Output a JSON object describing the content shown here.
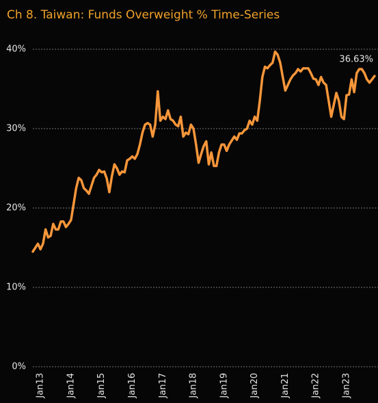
{
  "chart_data": {
    "type": "line",
    "title": "Ch 8. Taiwan:  Funds Overweight % Time-Series",
    "categories": [
      null,
      null,
      null,
      "Jan13",
      null,
      null,
      null,
      null,
      null,
      null,
      null,
      null,
      null,
      null,
      null,
      "Jan14",
      null,
      null,
      null,
      null,
      null,
      null,
      null,
      null,
      null,
      null,
      null,
      "Jan15",
      null,
      null,
      null,
      null,
      null,
      null,
      null,
      null,
      null,
      null,
      null,
      "Jan16",
      null,
      null,
      null,
      null,
      null,
      null,
      null,
      null,
      null,
      null,
      null,
      "Jan17",
      null,
      null,
      null,
      null,
      null,
      null,
      null,
      null,
      null,
      null,
      null,
      "Jan18",
      null,
      null,
      null,
      null,
      null,
      null,
      null,
      null,
      null,
      null,
      null,
      "Jan19",
      null,
      null,
      null,
      null,
      null,
      null,
      null,
      null,
      null,
      null,
      null,
      "Jan20",
      null,
      null,
      null,
      null,
      null,
      null,
      null,
      null,
      null,
      null,
      null,
      "Jan21",
      null,
      null,
      null,
      null,
      null,
      null,
      null,
      null,
      null,
      null,
      null,
      "Jan22",
      null,
      null,
      null,
      null,
      null,
      null,
      null,
      null,
      null,
      null,
      null,
      "Jan23",
      null,
      null,
      null,
      null,
      null,
      null,
      null,
      null,
      null,
      null,
      null
    ],
    "series": [
      {
        "name": "Funds Overweight %",
        "color": "#f7963a",
        "values": [
          14.5,
          15.0,
          15.5,
          14.8,
          15.5,
          17.3,
          16.3,
          16.5,
          18.0,
          17.3,
          17.3,
          18.3,
          18.3,
          17.6,
          18.0,
          18.5,
          20.5,
          22.5,
          23.8,
          23.5,
          22.5,
          22.2,
          21.8,
          22.8,
          23.8,
          24.2,
          24.8,
          24.5,
          24.6,
          23.7,
          22.0,
          24.0,
          25.5,
          25.0,
          24.2,
          24.6,
          24.5,
          26.0,
          26.2,
          26.5,
          26.2,
          26.8,
          28.0,
          29.5,
          30.5,
          30.7,
          30.5,
          29.0,
          30.5,
          34.7,
          31.0,
          31.5,
          31.2,
          32.3,
          31.2,
          31.0,
          30.5,
          30.3,
          31.5,
          29.0,
          29.5,
          29.3,
          30.5,
          30.0,
          28.0,
          25.7,
          26.8,
          27.8,
          28.4,
          25.5,
          27.0,
          25.3,
          25.3,
          27.0,
          28.0,
          28.0,
          27.2,
          28.0,
          28.5,
          29.0,
          28.6,
          29.4,
          29.4,
          29.8,
          30.0,
          31.0,
          30.5,
          31.5,
          31.0,
          33.5,
          36.5,
          37.8,
          37.6,
          38.0,
          38.3,
          39.7,
          39.3,
          38.3,
          36.5,
          34.8,
          35.5,
          36.2,
          36.7,
          37.0,
          37.5,
          37.2,
          37.6,
          37.6,
          37.6,
          37.0,
          36.3,
          36.2,
          35.5,
          36.5,
          35.8,
          35.5,
          33.5,
          31.5,
          33.0,
          34.5,
          33.5,
          31.5,
          31.2,
          34.2,
          34.3,
          36.2,
          34.6,
          37.0,
          37.5,
          37.5,
          37.0,
          36.2,
          35.8,
          36.2,
          36.63
        ],
        "value_labels": [
          null,
          null,
          null,
          null,
          null,
          null,
          null,
          null,
          null,
          null,
          null,
          null,
          null,
          null,
          null,
          null,
          null,
          null,
          null,
          null,
          null,
          null,
          null,
          null,
          null,
          null,
          null,
          null,
          null,
          null,
          null,
          null,
          null,
          null,
          null,
          null,
          null,
          null,
          null,
          null,
          null,
          null,
          null,
          null,
          null,
          null,
          null,
          null,
          null,
          null,
          null,
          null,
          null,
          null,
          null,
          null,
          null,
          null,
          null,
          null,
          null,
          null,
          null,
          null,
          null,
          null,
          null,
          null,
          null,
          null,
          null,
          null,
          null,
          null,
          null,
          null,
          null,
          null,
          null,
          null,
          null,
          null,
          null,
          null,
          null,
          null,
          null,
          null,
          null,
          null,
          null,
          null,
          null,
          null,
          null,
          null,
          null,
          null,
          null,
          null,
          null,
          null,
          null,
          null,
          null,
          null,
          null,
          null,
          null,
          null,
          null,
          null,
          null,
          null,
          null,
          null,
          null,
          null,
          null,
          null,
          null,
          null,
          null,
          null,
          null,
          null,
          null,
          null,
          null,
          null,
          null,
          null,
          null,
          null,
          "36.63%"
        ]
      }
    ],
    "ylim": [
      0,
      40
    ],
    "yticks": [
      {
        "value": 0,
        "label": "0%"
      },
      {
        "value": 10,
        "label": "10%"
      },
      {
        "value": 20,
        "label": "20%"
      },
      {
        "value": 30,
        "label": "30%"
      },
      {
        "value": 40,
        "label": "40%"
      }
    ],
    "grid": true
  }
}
